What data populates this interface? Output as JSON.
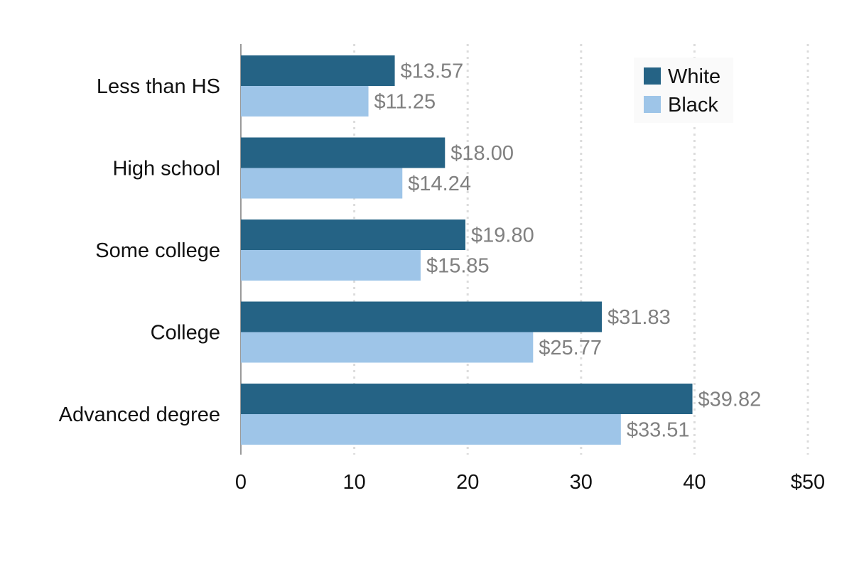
{
  "chart_data": {
    "type": "bar",
    "orientation": "horizontal",
    "categories": [
      "Less than HS",
      "High school",
      "Some college",
      "College",
      "Advanced degree"
    ],
    "series": [
      {
        "name": "White",
        "values": [
          13.57,
          18.0,
          19.8,
          31.83,
          39.82
        ],
        "labels": [
          "$13.57",
          "$18.00",
          "$19.80",
          "$31.83",
          "$39.82"
        ],
        "color": "#256385"
      },
      {
        "name": "Black",
        "values": [
          11.25,
          14.24,
          15.85,
          25.77,
          33.51
        ],
        "labels": [
          "$11.25",
          "$14.24",
          "$15.85",
          "$25.77",
          "$33.51"
        ],
        "color": "#9ec5e8"
      }
    ],
    "xlim": [
      0,
      50
    ],
    "xticks": [
      0,
      10,
      20,
      30,
      40,
      50
    ],
    "xtick_labels": [
      "0",
      "10",
      "20",
      "30",
      "40",
      "$50"
    ],
    "grid": true,
    "legend_position": "top-right",
    "value_label_color": "#808080"
  }
}
